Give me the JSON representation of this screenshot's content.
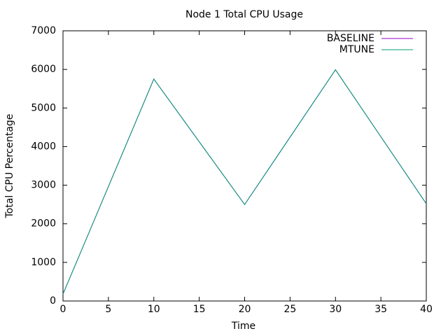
{
  "chart_data": {
    "type": "line",
    "title": "Node 1 Total CPU Usage",
    "x_label": "Time",
    "y_label": "Total CPU Percentage",
    "x": [
      0,
      10,
      20,
      30,
      40
    ],
    "series": [
      {
        "name": "BASELINE",
        "color": "#9400d3",
        "values": [
          180,
          5750,
          2500,
          5990,
          2520
        ]
      },
      {
        "name": "MTUNE",
        "color": "#009e73",
        "values": [
          180,
          5750,
          2500,
          5990,
          2520
        ]
      }
    ],
    "xlim": [
      0,
      40
    ],
    "xticks": [
      0,
      5,
      10,
      15,
      20,
      25,
      30,
      35,
      40
    ],
    "ylim": [
      0,
      7000
    ],
    "yticks": [
      0,
      1000,
      2000,
      3000,
      4000,
      5000,
      6000,
      7000
    ],
    "legend": "top-right"
  }
}
